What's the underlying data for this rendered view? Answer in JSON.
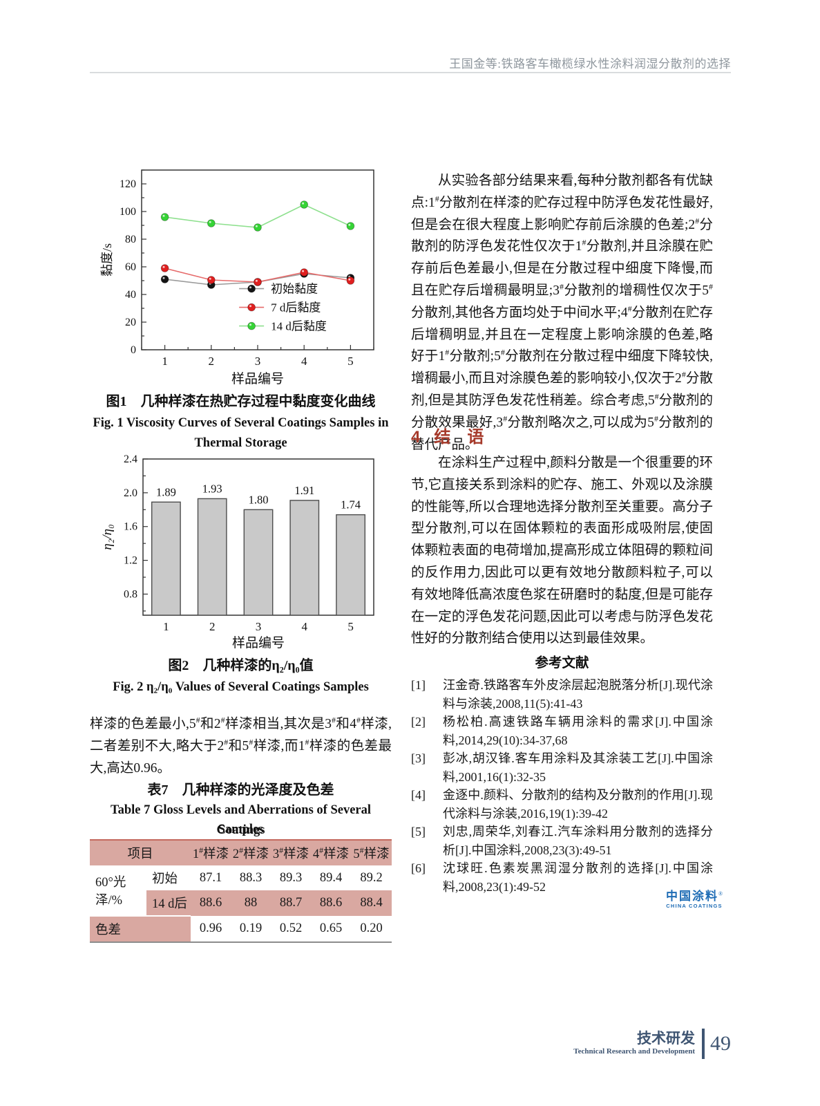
{
  "header": {
    "running_title": "王国金等:铁路客车橄榄绿水性涂料润湿分散剂的选择"
  },
  "chart_data": [
    {
      "id": "fig1-viscosity-lines",
      "type": "line",
      "title": "",
      "xlabel": "样品编号",
      "ylabel": "黏度/s",
      "x": [
        1,
        2,
        3,
        4,
        5
      ],
      "xlim": [
        0.5,
        5.5
      ],
      "ylim": [
        0,
        130
      ],
      "yticks": [
        0,
        20,
        40,
        60,
        80,
        100,
        120
      ],
      "grid": false,
      "legend_position": "lower-right",
      "series": [
        {
          "name": "初始黏度",
          "marker_color": "#141414",
          "line_color": "#9a9a9a",
          "values": [
            51,
            47,
            49,
            55,
            52
          ]
        },
        {
          "name": "7 d后黏度",
          "marker_color": "#e01f1f",
          "line_color": "#e66a6a",
          "values": [
            59,
            50.5,
            49,
            56,
            50
          ]
        },
        {
          "name": "14 d后黏度",
          "marker_color": "#35d435",
          "line_color": "#8ee08e",
          "values": [
            96,
            91.5,
            88.5,
            105,
            89.5
          ]
        }
      ]
    },
    {
      "id": "fig2-eta-bars",
      "type": "bar",
      "title": "",
      "xlabel": "样品编号",
      "ylabel": "η₂/η₀",
      "categories": [
        "1",
        "2",
        "3",
        "4",
        "5"
      ],
      "values": [
        1.89,
        1.93,
        1.8,
        1.91,
        1.74
      ],
      "ylim": [
        0.55,
        2.4
      ],
      "yticks": [
        0.8,
        1.2,
        1.6,
        2.0,
        2.4
      ],
      "grid": false,
      "bar_color": "#c9c9c9",
      "bar_edge": "#4d4d4d"
    }
  ],
  "figure1": {
    "caption_zh": "图1　几种样漆在热贮存过程中黏度变化曲线",
    "caption_en_line1": "Fig. 1  Viscosity Curves of Several Coatings Samples in",
    "caption_en_line2": "Thermal Storage"
  },
  "figure2": {
    "caption_zh": "图2　几种样漆的η₂/η₀值",
    "caption_en": "Fig. 2  η₂/η₀ Values of Several Coatings Samples"
  },
  "left_column": {
    "paragraph": "样漆的色差最小,5#和2#样漆相当,其次是3#和4#样漆,二者差别不大,略大于2#和5#样漆,而1#样漆的色差最大,高达0.96。"
  },
  "table7": {
    "title_zh": "表7　几种样漆的光泽度及色差",
    "title_en_line1": "Table 7  Gloss Levels and Aberrations of Several Coatings",
    "title_en_line2": "Samples",
    "header": [
      "项目",
      "1#样漆",
      "2#样漆",
      "3#样漆",
      "4#样漆",
      "5#样漆"
    ],
    "row_group_label": "60°光泽/%",
    "rows": [
      {
        "label": "初始",
        "values": [
          "87.1",
          "88.3",
          "89.3",
          "89.4",
          "89.2"
        ]
      },
      {
        "label": "14 d后",
        "values": [
          "88.6",
          "88",
          "88.7",
          "88.6",
          "88.4"
        ]
      },
      {
        "label": "色差",
        "values": [
          "0.96",
          "0.19",
          "0.52",
          "0.65",
          "0.20"
        ]
      }
    ]
  },
  "right_column": {
    "para1": "从实验各部分结果来看,每种分散剂都各有优缺点:1#分散剂在样漆的贮存过程中防浮色发花性最好,但是会在很大程度上影响贮存前后涂膜的色差;2#分散剂的防浮色发花性仅次于1#分散剂,并且涂膜在贮存前后色差最小,但是在分散过程中细度下降慢,而且在贮存后增稠最明显;3#分散剂的增稠性仅次于5#分散剂,其他各方面均处于中间水平;4#分散剂在贮存后增稠明显,并且在一定程度上影响涂膜的色差,略好于1#分散剂;5#分散剂在分散过程中细度下降较快,增稠最小,而且对涂膜色差的影响较小,仅次于2#分散剂,但是其防浮色发花性稍差。综合考虑,5#分散剂的分散效果最好,3#分散剂略次之,可以成为5#分散剂的替代产品。",
    "section4_number": "4",
    "section4_title": "结　语",
    "para2": "在涂料生产过程中,颜料分散是一个很重要的环节,它直接关系到涂料的贮存、施工、外观以及涂膜的性能等,所以合理地选择分散剂至关重要。高分子型分散剂,可以在固体颗粒的表面形成吸附层,使固体颗粒表面的电荷增加,提高形成立体阻碍的颗粒间的反作用力,因此可以更有效地分散颜料粒子,可以有效地降低高浓度色浆在研磨时的黏度,但是可能存在一定的浮色发花问题,因此可以考虑与防浮色发花性好的分散剂结合使用以达到最佳效果。",
    "references_title": "参考文献",
    "references": [
      {
        "num": "[1]",
        "text": "汪金奇.铁路客车外皮涂层起泡脱落分析[J].现代涂料与涂装,2008,11(5):41-43"
      },
      {
        "num": "[2]",
        "text": "杨松柏.高速铁路车辆用涂料的需求[J].中国涂料,2014,29(10):34-37,68"
      },
      {
        "num": "[3]",
        "text": "彭冰,胡汉锋.客车用涂料及其涂装工艺[J].中国涂料,2001,16(1):32-35"
      },
      {
        "num": "[4]",
        "text": "金逐中.颜料、分散剂的结构及分散剂的作用[J].现代涂料与涂装,2016,19(1):39-42"
      },
      {
        "num": "[5]",
        "text": "刘忠,周荣华,刘春江.汽车涂料用分散剂的选择分析[J].中国涂料,2008,23(3):49-51"
      },
      {
        "num": "[6]",
        "text": "沈球旺.色素炭黑润湿分散剂的选择[J].中国涂料,2008,23(1):49-52"
      }
    ],
    "logo": {
      "zh": "中国涂料",
      "trademark": "®",
      "en": "CHINA COATINGS"
    }
  },
  "footer": {
    "section_zh": "技术研发",
    "section_en": "Technical Research and Development",
    "page_number": "49"
  }
}
